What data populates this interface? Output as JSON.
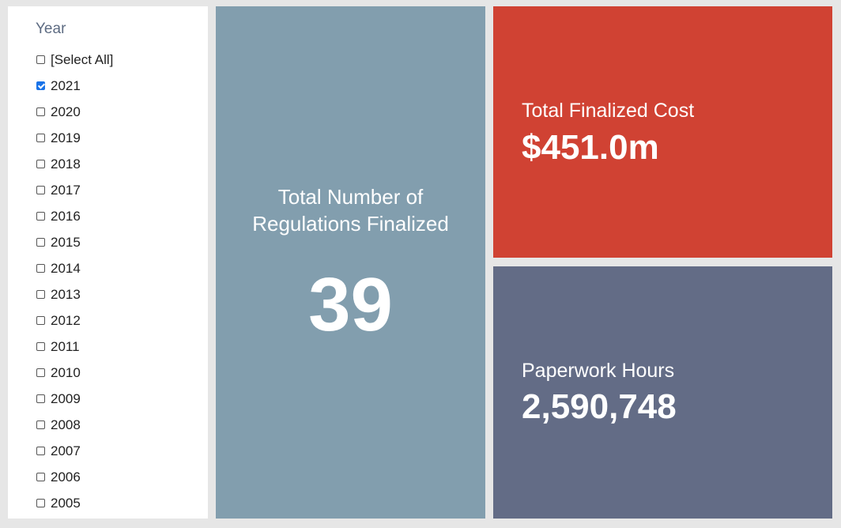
{
  "filter": {
    "title": "Year",
    "options": [
      {
        "label": "[Select All]",
        "checked": false
      },
      {
        "label": "2021",
        "checked": true
      },
      {
        "label": "2020",
        "checked": false
      },
      {
        "label": "2019",
        "checked": false
      },
      {
        "label": "2018",
        "checked": false
      },
      {
        "label": "2017",
        "checked": false
      },
      {
        "label": "2016",
        "checked": false
      },
      {
        "label": "2015",
        "checked": false
      },
      {
        "label": "2014",
        "checked": false
      },
      {
        "label": "2013",
        "checked": false
      },
      {
        "label": "2012",
        "checked": false
      },
      {
        "label": "2011",
        "checked": false
      },
      {
        "label": "2010",
        "checked": false
      },
      {
        "label": "2009",
        "checked": false
      },
      {
        "label": "2008",
        "checked": false
      },
      {
        "label": "2007",
        "checked": false
      },
      {
        "label": "2006",
        "checked": false
      },
      {
        "label": "2005",
        "checked": false
      }
    ]
  },
  "cards": {
    "regulations": {
      "label": "Total Number of Regulations Finalized",
      "value": "39",
      "color": "#829eae"
    },
    "cost": {
      "label": "Total Finalized Cost",
      "value": "$451.0m",
      "color": "#d04233"
    },
    "hours": {
      "label": "Paperwork Hours",
      "value": "2,590,748",
      "color": "#636c86"
    }
  }
}
